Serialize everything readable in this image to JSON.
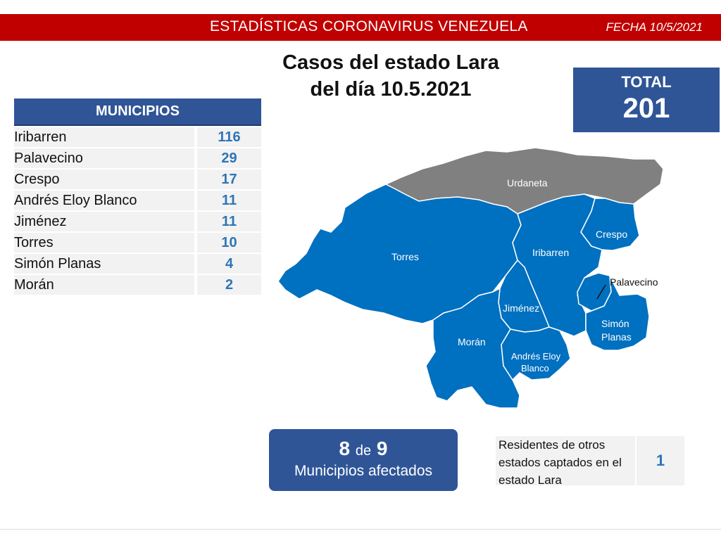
{
  "header": {
    "title": "ESTADÍSTICAS CORONAVIRUS VENEZUELA",
    "date": "FECHA 10/5/2021",
    "banner_color": "#c00000"
  },
  "main_title": {
    "line1": "Casos del estado Lara",
    "line2": "del día 10.5.2021"
  },
  "total": {
    "label": "TOTAL",
    "value": "201"
  },
  "municipios": {
    "header": "MUNICIPIOS",
    "rows": [
      {
        "name": "Iribarren",
        "value": "116"
      },
      {
        "name": "Palavecino",
        "value": "29"
      },
      {
        "name": "Crespo",
        "value": "17"
      },
      {
        "name": "Andrés Eloy Blanco",
        "value": "11"
      },
      {
        "name": "Jiménez",
        "value": "11"
      },
      {
        "name": "Torres",
        "value": "10"
      },
      {
        "name": "Simón Planas",
        "value": "4"
      },
      {
        "name": "Morán",
        "value": "2"
      }
    ]
  },
  "map": {
    "affected_color": "#0070c0",
    "unaffected_color": "#808080",
    "labels": {
      "urdaneta": "Urdaneta",
      "torres": "Torres",
      "iribarren": "Iribarren",
      "crespo": "Crespo",
      "palavecino": "Palavecino",
      "jimenez": "Jiménez",
      "moran": "Morán",
      "simon_planas_1": "Simón",
      "simon_planas_2": "Planas",
      "aeb_1": "Andrés Eloy",
      "aeb_2": "Blanco"
    }
  },
  "affected": {
    "count": "8",
    "de": "de",
    "total": "9",
    "label": "Municipios afectados"
  },
  "residents": {
    "text": "Residentes de otros estados captados en el estado Lara",
    "value": "1"
  },
  "colors": {
    "dark_blue": "#2f5597",
    "value_blue": "#2e75b6"
  }
}
